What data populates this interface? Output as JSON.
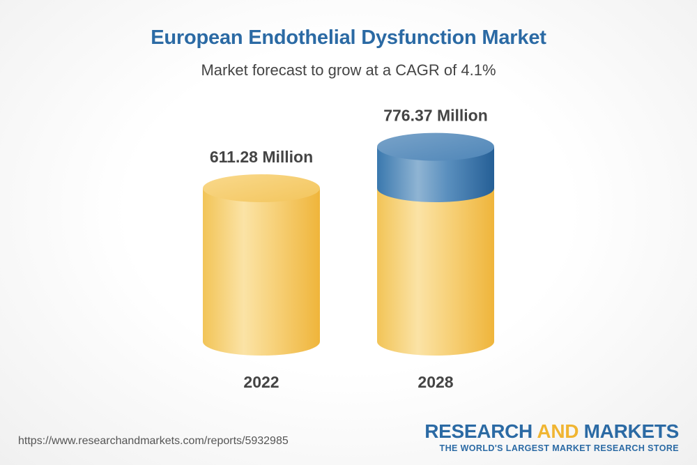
{
  "chart_data": {
    "type": "bar",
    "style": "3d-cylinder",
    "title": "European Endothelial Dysfunction Market",
    "subtitle": "Market forecast to grow at a CAGR of 4.1%",
    "categories": [
      "2022",
      "2028"
    ],
    "values": [
      611.28,
      776.37
    ],
    "value_labels": [
      "611.28 Million",
      "776.37 Million"
    ],
    "unit": "Million",
    "colors": {
      "base": "#f0c050",
      "growth": "#2f6da3"
    }
  },
  "footer": {
    "url": "https://www.researchandmarkets.com/reports/5932985",
    "brand_word1": "RESEARCH",
    "brand_word2": "AND",
    "brand_word3": "MARKETS",
    "brand_tagline": "THE WORLD'S LARGEST MARKET RESEARCH STORE"
  }
}
